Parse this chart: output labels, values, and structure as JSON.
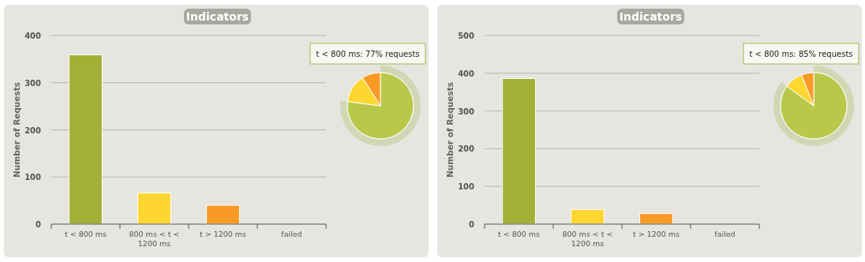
{
  "chart_data": [
    {
      "type": "bar",
      "title": "Indicators",
      "ylabel": "Number of Requests",
      "categories": [
        "t < 800 ms",
        "800 ms < t < 1200 ms",
        "t > 1200 ms",
        "failed"
      ],
      "values": [
        359,
        66,
        40,
        0
      ],
      "colors": [
        "#a2b036",
        "#fed630",
        "#fa9a26",
        "#e0473a"
      ],
      "ylim": [
        0,
        400
      ],
      "yticks": [
        0,
        100,
        200,
        300,
        400
      ],
      "grid": "y"
    },
    {
      "type": "pie",
      "categories": [
        null,
        null,
        null
      ],
      "values": [
        77,
        14,
        9
      ],
      "colors": [
        "#b8c94a",
        "#fed630",
        "#fa9a26"
      ],
      "annotations": [
        "t < 800 ms: 77% requests"
      ]
    },
    {
      "type": "bar",
      "title": "Indicators",
      "ylabel": "Number of Requests",
      "categories": [
        "t < 800 ms",
        "800 ms < t < 1200 ms",
        "t > 1200 ms",
        "failed"
      ],
      "values": [
        386,
        39,
        28,
        0
      ],
      "colors": [
        "#a2b036",
        "#fed630",
        "#fa9a26",
        "#e0473a"
      ],
      "ylim": [
        0,
        500
      ],
      "yticks": [
        0,
        100,
        200,
        300,
        400,
        500
      ],
      "grid": "y"
    },
    {
      "type": "pie",
      "categories": [
        null,
        null,
        null
      ],
      "values": [
        85,
        9,
        6
      ],
      "colors": [
        "#b8c94a",
        "#fed630",
        "#fa9a26"
      ],
      "annotations": [
        "t < 800 ms: 85% requests"
      ]
    }
  ]
}
